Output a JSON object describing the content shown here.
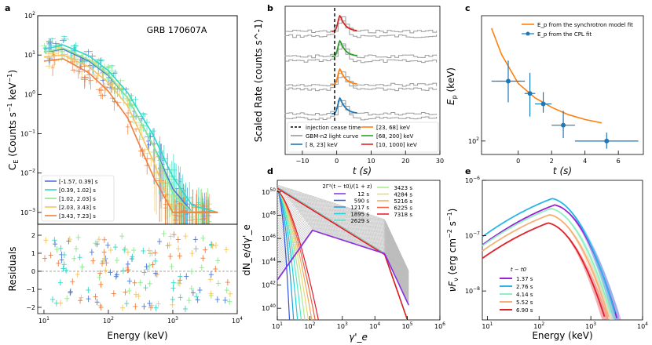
{
  "figure": {
    "panel_a": {
      "label": "a",
      "annotation": "GRB 170607A",
      "ylabel": "C_E (Counts s^-1 keV^-1)",
      "residual_ylabel": "Residuals",
      "xlabel": "Energy (keV)",
      "x_ticks": [
        "10^1",
        "10^2",
        "10^3",
        "10^4"
      ],
      "y_ticks": [
        "10^-3",
        "10^-2",
        "10^-1",
        "10^0",
        "10^1",
        "10^2"
      ],
      "residual_ticks": [
        "-2",
        "-1",
        "0",
        "1",
        "2"
      ],
      "legend": [
        {
          "label": "[-1.57, 0.39] s",
          "color": "#4e79d6"
        },
        {
          "label": "[0.39, 1.02] s",
          "color": "#2fd9c4"
        },
        {
          "label": "[1.02, 2.03] s",
          "color": "#8ee88e"
        },
        {
          "label": "[2.03, 3.43] s",
          "color": "#f4c55e"
        },
        {
          "label": "[3.43, 7.23] s",
          "color": "#f07e3e"
        }
      ]
    },
    "panel_b": {
      "label": "b",
      "ylabel": "Scaled Rate (counts s^-1)",
      "xlabel": "t (s)",
      "x_ticks": [
        "-10",
        "0",
        "10",
        "20",
        "30"
      ],
      "legend": [
        {
          "label": "injection cease time",
          "color": "#000000"
        },
        {
          "label": "GBM-n2 light curve",
          "color": "#999999"
        },
        {
          "label": "[ 8, 23] keV",
          "color": "#1f77b4"
        },
        {
          "label": "[23, 68] keV",
          "color": "#ff7f0e"
        },
        {
          "label": "[68, 200] keV",
          "color": "#2ca02c"
        },
        {
          "label": "[10, 1000] keV",
          "color": "#d62728"
        }
      ]
    },
    "panel_c": {
      "label": "c",
      "ylabel": "E_p (keV)",
      "xlabel": "t (s)",
      "x_ticks": [
        "0",
        "2",
        "4",
        "6"
      ],
      "y_ticks": [
        "10^2"
      ],
      "legend": [
        {
          "label": "E_p from the synchrotron model fit",
          "color": "#ff7f0e"
        },
        {
          "label": "E_p from the CPL fit",
          "color": "#1f77b4"
        }
      ]
    },
    "panel_d": {
      "label": "d",
      "ylabel": "dN_e/dγ'_e",
      "xlabel": "γ'_e",
      "x_ticks": [
        "10^1",
        "10^2",
        "10^3",
        "10^4",
        "10^5",
        "10^6"
      ],
      "y_ticks": [
        "10^40",
        "10^42",
        "10^44",
        "10^46",
        "10^48",
        "10^50"
      ],
      "legend_title": "2Γ²(t − t0)/(1 + z)",
      "legend_col1": [
        {
          "label": "12 s",
          "color": "#8a2be2"
        },
        {
          "label": "590 s",
          "color": "#3050e0"
        },
        {
          "label": "1217 s",
          "color": "#1c9ce0"
        },
        {
          "label": "1895 s",
          "color": "#20d0d8"
        },
        {
          "label": "2629 s",
          "color": "#50e8c8"
        }
      ],
      "legend_col2": [
        {
          "label": "3423 s",
          "color": "#a8e890"
        },
        {
          "label": "4284 s",
          "color": "#e8d870"
        },
        {
          "label": "5216 s",
          "color": "#f0a860"
        },
        {
          "label": "6225 s",
          "color": "#f06040"
        },
        {
          "label": "7318 s",
          "color": "#e01828"
        }
      ]
    },
    "panel_e": {
      "label": "e",
      "ylabel": "νF_ν (erg cm^-2 s^-1)",
      "xlabel": "Energy (keV)",
      "x_ticks": [
        "10^1",
        "10^2",
        "10^3",
        "10^4"
      ],
      "y_ticks": [
        "10^-8",
        "10^-7",
        "10^-6"
      ],
      "legend_title": "t − t0",
      "legend": [
        {
          "label": "1.37 s",
          "color": "#9b1fd4"
        },
        {
          "label": "2.76 s",
          "color": "#29b5e8"
        },
        {
          "label": "4.14 s",
          "color": "#8ef0c0"
        },
        {
          "label": "5.52 s",
          "color": "#f5b078"
        },
        {
          "label": "6.90 s",
          "color": "#e0202a"
        }
      ]
    }
  },
  "chart_data": [
    {
      "type": "line",
      "panel": "a",
      "title": "GRB 170607A",
      "xlabel": "Energy (keV)",
      "ylabel": "C_E (Counts s^-1 keV^-1)",
      "xscale": "log",
      "yscale": "log",
      "xlim": [
        8,
        10000
      ],
      "ylim": [
        0.0005,
        100
      ],
      "x": [
        10,
        20,
        50,
        100,
        200,
        500,
        1000,
        2000,
        5000
      ],
      "series": [
        {
          "name": "[-1.57, 0.39] s",
          "values": [
            12,
            14,
            7,
            3,
            0.8,
            0.05,
            0.004,
            0.001,
            0.001
          ]
        },
        {
          "name": "[0.39, 1.02] s",
          "values": [
            14,
            18,
            9.5,
            4,
            1.1,
            0.09,
            0.008,
            0.0015,
            0.001
          ]
        },
        {
          "name": "[1.02, 2.03] s",
          "values": [
            12,
            15,
            7.5,
            3.2,
            0.8,
            0.05,
            0.003,
            0.001,
            0.001
          ]
        },
        {
          "name": "[2.03, 3.43] s",
          "values": [
            9,
            10,
            5,
            2,
            0.5,
            0.02,
            0.001,
            0.001,
            0.001
          ]
        },
        {
          "name": "[3.43, 7.23] s",
          "values": [
            7,
            8,
            3.5,
            1.2,
            0.25,
            0.008,
            0.001,
            0.001,
            0.001
          ]
        }
      ]
    },
    {
      "type": "line",
      "panel": "b",
      "xlabel": "t (s)",
      "ylabel": "Scaled Rate (counts s^-1)",
      "xlim": [
        -15,
        30
      ],
      "injection_cease_time": 1.0,
      "series": [
        {
          "name": "[10, 1000] keV",
          "peak_t": 1.0
        },
        {
          "name": "[68, 200] keV",
          "peak_t": 1.0
        },
        {
          "name": "[23, 68] keV",
          "peak_t": 1.0
        },
        {
          "name": "[ 8, 23] keV",
          "peak_t": 1.0
        }
      ]
    },
    {
      "type": "scatter",
      "panel": "c",
      "xlabel": "t (s)",
      "ylabel": "E_p (keV)",
      "yscale": "log",
      "xlim": [
        -2.2,
        7.5
      ],
      "ylim": [
        80,
        800
      ],
      "points": [
        {
          "t": -0.6,
          "ep": 270,
          "t_err": 1.0,
          "ep_lo": 190,
          "ep_hi": 380
        },
        {
          "t": 0.7,
          "ep": 220,
          "t_err": 0.32,
          "ep_lo": 150,
          "ep_hi": 310
        },
        {
          "t": 1.5,
          "ep": 185,
          "t_err": 0.5,
          "ep_lo": 160,
          "ep_hi": 225
        },
        {
          "t": 2.7,
          "ep": 130,
          "t_err": 0.7,
          "ep_lo": 105,
          "ep_hi": 165
        },
        {
          "t": 5.3,
          "ep": 100,
          "t_err": 1.9,
          "ep_lo": 88,
          "ep_hi": 115
        }
      ],
      "model_curve": {
        "t": [
          -1.6,
          -1.0,
          0,
          1,
          2,
          3,
          4,
          5
        ],
        "ep": [
          650,
          420,
          260,
          205,
          175,
          155,
          143,
          135
        ]
      }
    },
    {
      "type": "line",
      "panel": "d",
      "xlabel": "γ'_e",
      "ylabel": "dN_e/dγ'_e",
      "xscale": "log",
      "yscale": "log",
      "xlim": [
        10,
        1000000
      ],
      "ylim": [
        1e+39,
        1e+51
      ],
      "injection_break": 20000,
      "series": [
        {
          "name": "12 s",
          "gamma_peak": 120
        },
        {
          "name": "590 s",
          "gamma_peak": 12
        },
        {
          "name": "1217 s",
          "gamma_peak": 10
        },
        {
          "name": "1895 s",
          "gamma_peak": 10
        },
        {
          "name": "2629 s",
          "gamma_peak": 10
        },
        {
          "name": "3423 s",
          "gamma_peak": 10
        },
        {
          "name": "4284 s",
          "gamma_peak": 10
        },
        {
          "name": "5216 s",
          "gamma_peak": 10
        },
        {
          "name": "6225 s",
          "gamma_peak": 10
        },
        {
          "name": "7318 s",
          "gamma_peak": 10
        }
      ]
    },
    {
      "type": "line",
      "panel": "e",
      "xlabel": "Energy (keV)",
      "ylabel": "νF_ν (erg cm^-2 s^-1)",
      "xscale": "log",
      "yscale": "log",
      "xlim": [
        8,
        10000
      ],
      "ylim": [
        3e-09,
        1e-06
      ],
      "series": [
        {
          "name": "1.37 s",
          "peak_E": 200,
          "peak_flux": 3.6e-07
        },
        {
          "name": "2.76 s",
          "peak_E": 180,
          "peak_flux": 4.7e-07
        },
        {
          "name": "4.14 s",
          "peak_E": 170,
          "peak_flux": 3.1e-07
        },
        {
          "name": "5.52 s",
          "peak_E": 160,
          "peak_flux": 2.4e-07
        },
        {
          "name": "6.90 s",
          "peak_E": 150,
          "peak_flux": 1.7e-07
        }
      ]
    }
  ]
}
